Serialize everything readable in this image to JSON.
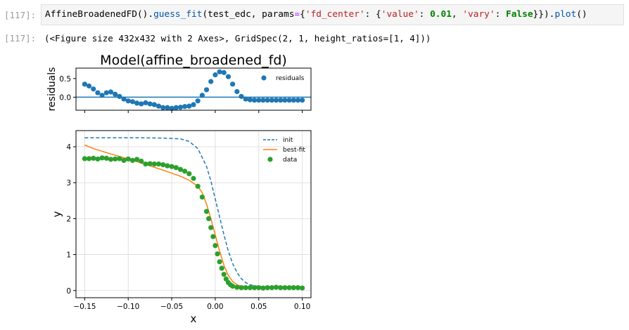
{
  "input_cell": {
    "prompt": "[117]:",
    "code_tokens": [
      {
        "text": "AffineBroadenedFD().",
        "cls": ""
      },
      {
        "text": "guess_fit",
        "cls": "tk-fn"
      },
      {
        "text": "(test_edc, params",
        "cls": ""
      },
      {
        "text": "=",
        "cls": "tk-op"
      },
      {
        "text": "{",
        "cls": ""
      },
      {
        "text": "'fd_center'",
        "cls": "tk-str"
      },
      {
        "text": ": {",
        "cls": ""
      },
      {
        "text": "'value'",
        "cls": "tk-str"
      },
      {
        "text": ": ",
        "cls": ""
      },
      {
        "text": "0.01",
        "cls": "tk-num"
      },
      {
        "text": ", ",
        "cls": ""
      },
      {
        "text": "'vary'",
        "cls": "tk-str"
      },
      {
        "text": ": ",
        "cls": ""
      },
      {
        "text": "False",
        "cls": "tk-kw"
      },
      {
        "text": "}}).",
        "cls": ""
      },
      {
        "text": "plot",
        "cls": "tk-fn"
      },
      {
        "text": "()",
        "cls": ""
      }
    ]
  },
  "output_cell": {
    "prompt": "[117]:",
    "text": "(<Figure size 432x432 with 2 Axes>, GridSpec(2, 1, height_ratios=[1, 4]))"
  },
  "chart_data": [
    {
      "type": "scatter",
      "title": "Model(affine_broadened_fd)",
      "xlabel": "",
      "ylabel": "residuals",
      "xlim": [
        -0.16,
        0.11
      ],
      "ylim": [
        -0.35,
        0.78
      ],
      "yticks": [
        0.0,
        0.5
      ],
      "ytick_labels": [
        "0.0",
        "0.5"
      ],
      "xticks": [
        -0.15,
        -0.1,
        -0.05,
        0.0,
        0.05,
        0.1
      ],
      "grid": false,
      "hline": 0,
      "legend": {
        "placement": "top-right",
        "entries": [
          "residuals"
        ]
      },
      "colors": {
        "residuals": "#1f77b4"
      },
      "series": [
        {
          "name": "residuals",
          "x": [
            -0.15,
            -0.145,
            -0.14,
            -0.135,
            -0.13,
            -0.125,
            -0.12,
            -0.115,
            -0.11,
            -0.105,
            -0.1,
            -0.095,
            -0.09,
            -0.085,
            -0.08,
            -0.075,
            -0.07,
            -0.065,
            -0.06,
            -0.055,
            -0.05,
            -0.045,
            -0.04,
            -0.035,
            -0.03,
            -0.025,
            -0.02,
            -0.015,
            -0.01,
            -0.005,
            0.0,
            0.005,
            0.01,
            0.015,
            0.02,
            0.025,
            0.03,
            0.035,
            0.04,
            0.045,
            0.05,
            0.055,
            0.06,
            0.065,
            0.07,
            0.075,
            0.08,
            0.085,
            0.09,
            0.095,
            0.1
          ],
          "values": [
            0.35,
            0.3,
            0.22,
            0.12,
            0.05,
            0.12,
            0.14,
            0.08,
            0.02,
            -0.05,
            -0.1,
            -0.12,
            -0.16,
            -0.18,
            -0.15,
            -0.18,
            -0.2,
            -0.24,
            -0.28,
            -0.28,
            -0.3,
            -0.28,
            -0.27,
            -0.25,
            -0.24,
            -0.2,
            -0.1,
            0.05,
            0.2,
            0.42,
            0.6,
            0.68,
            0.66,
            0.55,
            0.35,
            0.15,
            0.02,
            -0.05,
            -0.07,
            -0.08,
            -0.08,
            -0.08,
            -0.08,
            -0.08,
            -0.08,
            -0.08,
            -0.08,
            -0.08,
            -0.08,
            -0.08,
            -0.08
          ]
        }
      ]
    },
    {
      "type": "line",
      "title": "",
      "xlabel": "x",
      "ylabel": "y",
      "xlim": [
        -0.16,
        0.11
      ],
      "ylim": [
        -0.2,
        4.45
      ],
      "xticks": [
        -0.15,
        -0.1,
        -0.05,
        0.0,
        0.05,
        0.1
      ],
      "xtick_labels": [
        "−0.15",
        "−0.10",
        "−0.05",
        "0.00",
        "0.05",
        "0.10"
      ],
      "yticks": [
        0,
        1,
        2,
        3,
        4
      ],
      "ytick_labels": [
        "0",
        "1",
        "2",
        "3",
        "4"
      ],
      "grid": true,
      "legend": {
        "placement": "top-right",
        "entries": [
          "init",
          "best-fit",
          "data"
        ]
      },
      "colors": {
        "init": "#1f77b4",
        "best-fit": "#ff7f0e",
        "data": "#2ca02c"
      },
      "series": [
        {
          "name": "init",
          "style": "dashed",
          "x": [
            -0.15,
            -0.12,
            -0.09,
            -0.06,
            -0.04,
            -0.03,
            -0.02,
            -0.01,
            -0.005,
            0.0,
            0.005,
            0.01,
            0.015,
            0.02,
            0.025,
            0.03,
            0.035,
            0.04,
            0.05,
            0.06,
            0.08,
            0.1
          ],
          "values": [
            4.25,
            4.25,
            4.25,
            4.24,
            4.22,
            4.15,
            3.95,
            3.45,
            3.05,
            2.55,
            2.05,
            1.55,
            1.1,
            0.75,
            0.5,
            0.33,
            0.22,
            0.16,
            0.11,
            0.1,
            0.1,
            0.1
          ]
        },
        {
          "name": "best-fit",
          "style": "solid",
          "x": [
            -0.15,
            -0.14,
            -0.12,
            -0.1,
            -0.08,
            -0.06,
            -0.04,
            -0.03,
            -0.02,
            -0.015,
            -0.01,
            -0.005,
            0.0,
            0.005,
            0.01,
            0.015,
            0.02,
            0.025,
            0.03,
            0.04,
            0.05,
            0.06,
            0.08,
            0.1
          ],
          "values": [
            4.05,
            3.95,
            3.8,
            3.66,
            3.51,
            3.35,
            3.18,
            3.07,
            2.9,
            2.72,
            2.4,
            2.0,
            1.55,
            1.1,
            0.7,
            0.42,
            0.25,
            0.16,
            0.12,
            0.1,
            0.1,
            0.1,
            0.1,
            0.1
          ]
        },
        {
          "name": "data",
          "style": "markers",
          "x": [
            -0.15,
            -0.145,
            -0.14,
            -0.135,
            -0.13,
            -0.125,
            -0.12,
            -0.115,
            -0.11,
            -0.105,
            -0.1,
            -0.095,
            -0.09,
            -0.085,
            -0.08,
            -0.075,
            -0.07,
            -0.065,
            -0.06,
            -0.055,
            -0.05,
            -0.045,
            -0.04,
            -0.035,
            -0.03,
            -0.025,
            -0.02,
            -0.015,
            -0.01,
            -0.0075,
            -0.005,
            -0.0025,
            0.0,
            0.0025,
            0.005,
            0.0075,
            0.01,
            0.0125,
            0.015,
            0.0175,
            0.02,
            0.025,
            0.03,
            0.035,
            0.04,
            0.045,
            0.05,
            0.055,
            0.06,
            0.065,
            0.07,
            0.075,
            0.08,
            0.085,
            0.09,
            0.095,
            0.1
          ],
          "values": [
            3.67,
            3.67,
            3.68,
            3.66,
            3.69,
            3.68,
            3.65,
            3.66,
            3.67,
            3.62,
            3.66,
            3.62,
            3.65,
            3.6,
            3.52,
            3.53,
            3.52,
            3.52,
            3.5,
            3.47,
            3.45,
            3.42,
            3.37,
            3.32,
            3.25,
            3.12,
            2.9,
            2.6,
            2.2,
            2.0,
            1.75,
            1.5,
            1.25,
            1.02,
            0.8,
            0.62,
            0.45,
            0.32,
            0.22,
            0.16,
            0.12,
            0.09,
            0.08,
            0.08,
            0.08,
            0.08,
            0.08,
            0.07,
            0.08,
            0.08,
            0.09,
            0.08,
            0.08,
            0.08,
            0.08,
            0.08,
            0.07
          ]
        }
      ]
    }
  ]
}
